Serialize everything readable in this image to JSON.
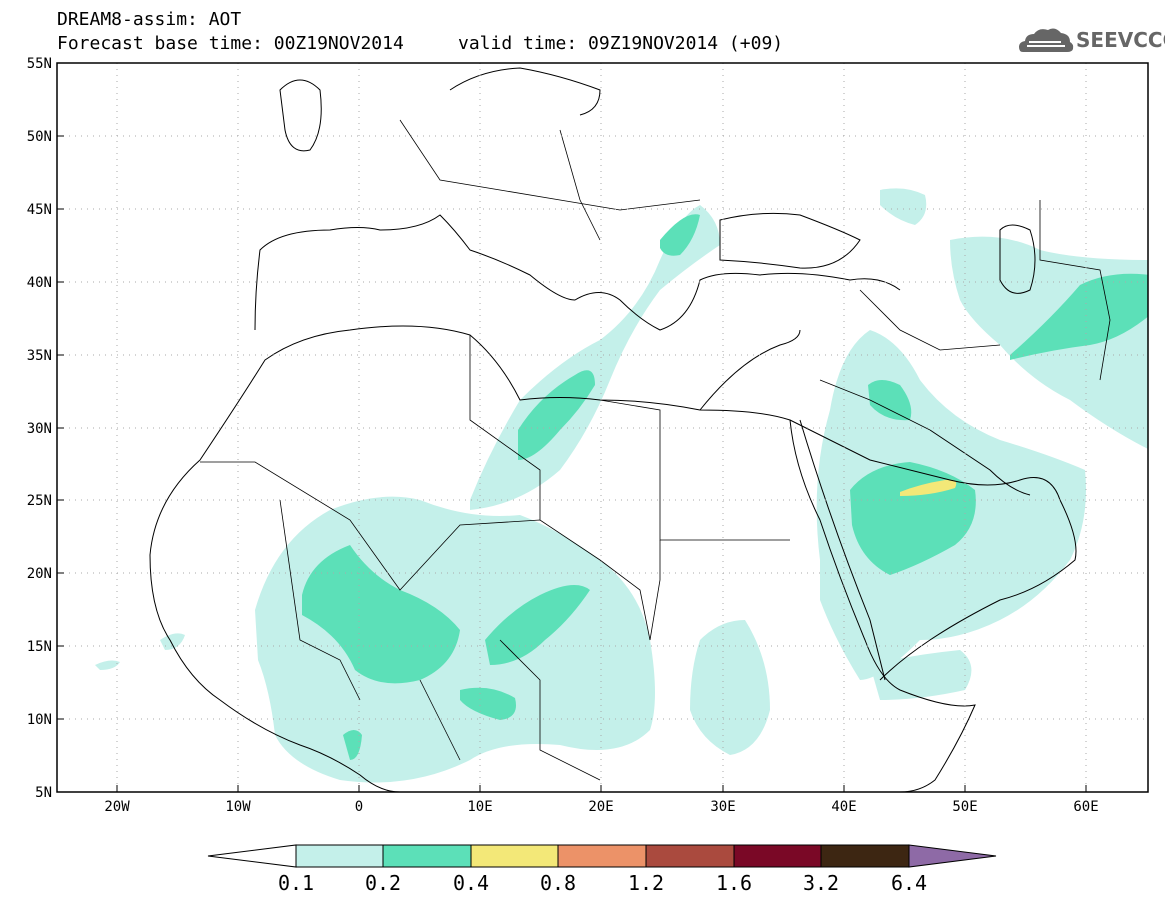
{
  "title": {
    "line1": "DREAM8-assim: AOT",
    "line2_base_label": "Forecast base time:",
    "line2_base_value": "00Z19NOV2014",
    "line2_valid_label": "valid time:",
    "line2_valid_value": "09Z19NOV2014 (+09)"
  },
  "logo": {
    "text": "SEEVCCC",
    "icon": "cloud-icon"
  },
  "map": {
    "lon_range": [
      -25,
      65
    ],
    "lat_range": [
      5,
      55
    ],
    "lat_ticks": [
      "55N",
      "50N",
      "45N",
      "40N",
      "35N",
      "30N",
      "25N",
      "20N",
      "15N",
      "10N",
      "5N"
    ],
    "lat_values": [
      55,
      50,
      45,
      40,
      35,
      30,
      25,
      20,
      15,
      10,
      5
    ],
    "lon_ticks": [
      "20W",
      "10W",
      "0",
      "10E",
      "20E",
      "30E",
      "40E",
      "50E",
      "60E"
    ],
    "lon_values": [
      -20,
      -10,
      0,
      10,
      20,
      30,
      40,
      50,
      60
    ],
    "grid": true
  },
  "colorbar": {
    "levels": [
      "0.1",
      "0.2",
      "0.4",
      "0.8",
      "1.2",
      "1.6",
      "3.2",
      "6.4"
    ],
    "colors": [
      "#ffffff",
      "#c4f0ea",
      "#5ce0b8",
      "#f3e878",
      "#ec9268",
      "#aa4a3e",
      "#7a0826",
      "#3d2612",
      "#8e6aa6"
    ]
  }
}
